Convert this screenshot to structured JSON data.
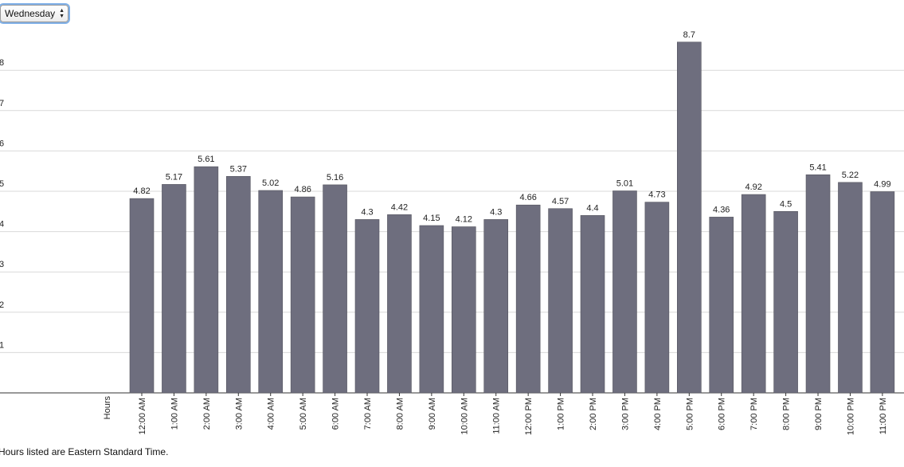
{
  "day_selector": {
    "selected": "Wednesday",
    "arrows_icon": "up-down-arrows-icon"
  },
  "footnote": "Hours listed are Eastern Standard Time.",
  "colors": {
    "bar": "#6e6e7e",
    "gridline": "#d9d9d9",
    "axis": "#333333",
    "focus_ring": "#7fb0e8"
  },
  "chart_data": {
    "type": "bar",
    "title": "",
    "xlabel": "Hours",
    "ylabel": "",
    "ylim": [
      0,
      9
    ],
    "yticks": [
      1,
      2,
      3,
      4,
      5,
      6,
      7,
      8
    ],
    "grid": true,
    "categories": [
      "12:00 AM",
      "1:00 AM",
      "2:00 AM",
      "3:00 AM",
      "4:00 AM",
      "5:00 AM",
      "6:00 AM",
      "7:00 AM",
      "8:00 AM",
      "9:00 AM",
      "10:00 AM",
      "11:00 AM",
      "12:00 PM",
      "1:00 PM",
      "2:00 PM",
      "3:00 PM",
      "4:00 PM",
      "5:00 PM",
      "6:00 PM",
      "7:00 PM",
      "8:00 PM",
      "9:00 PM",
      "10:00 PM",
      "11:00 PM"
    ],
    "values": [
      4.82,
      5.17,
      5.61,
      5.37,
      5.02,
      4.86,
      5.16,
      4.3,
      4.42,
      4.15,
      4.12,
      4.3,
      4.66,
      4.57,
      4.4,
      5.01,
      4.73,
      8.7,
      4.36,
      4.92,
      4.5,
      5.41,
      5.22,
      4.99
    ]
  }
}
